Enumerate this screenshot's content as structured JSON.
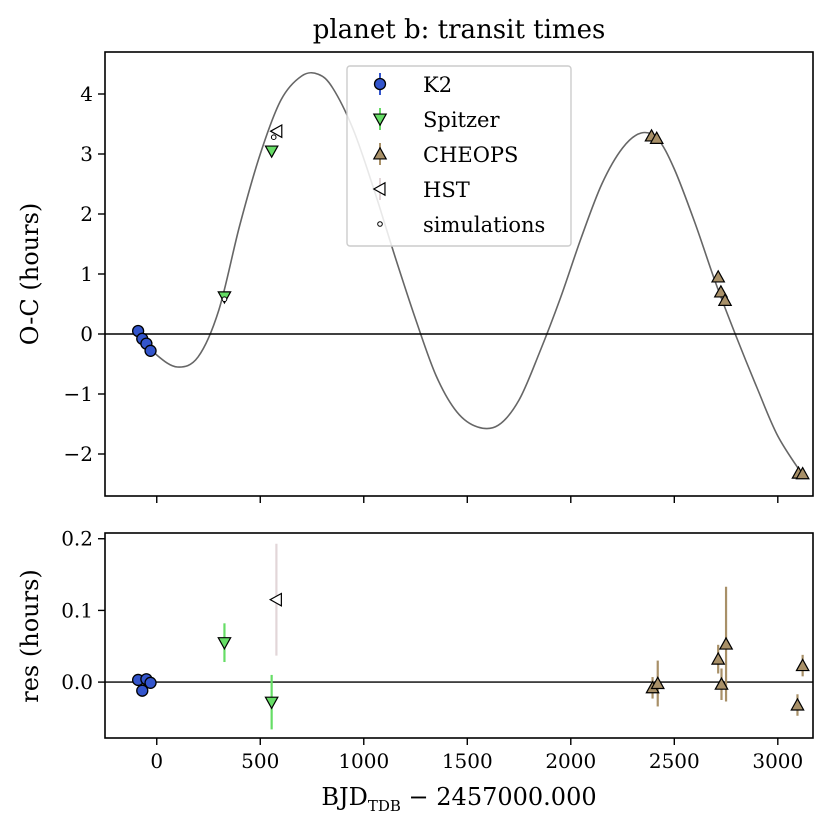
{
  "chart_data": [
    {
      "type": "scatter",
      "title": "planet b: transit times",
      "xlabel": "",
      "ylabel": "O-C (hours)",
      "xlim": [
        -250,
        3170
      ],
      "ylim": [
        -2.7,
        4.7
      ],
      "x_ticks": [
        0,
        500,
        1000,
        1500,
        2000,
        2500,
        3000
      ],
      "y_ticks": [
        -2,
        -1,
        0,
        1,
        2,
        3,
        4
      ],
      "y_tick_labels": [
        "−2",
        "−1",
        "0",
        "1",
        "2",
        "3",
        "4"
      ],
      "zero_line": 0,
      "legend_position": "upper center",
      "series": [
        {
          "name": "K2",
          "marker": "circle",
          "color": "#3355cc",
          "x": [
            -90,
            -70,
            -50,
            -30
          ],
          "y": [
            0.05,
            -0.08,
            -0.16,
            -0.28
          ]
        },
        {
          "name": "Spitzer",
          "marker": "triangle_down",
          "color": "#66dd66",
          "x": [
            327,
            555
          ],
          "y": [
            0.62,
            3.05
          ]
        },
        {
          "name": "CHEOPS",
          "marker": "triangle_up",
          "color": "#a89068",
          "x": [
            2390,
            2415,
            2712,
            2725,
            2745,
            3100,
            3120
          ],
          "y": [
            3.3,
            3.26,
            0.95,
            0.7,
            0.56,
            -2.32,
            -2.33
          ]
        },
        {
          "name": "HST",
          "marker": "triangle_left",
          "color": "#ffffff",
          "x": [
            580
          ],
          "y": [
            3.38
          ]
        },
        {
          "name": "simulations",
          "marker": "small_circle",
          "color": "#ffffff",
          "x": [
            327,
            565
          ],
          "y": [
            0.58,
            3.28
          ]
        }
      ],
      "model_curve": {
        "color": "#666666",
        "x": [
          -90,
          0,
          100,
          200,
          300,
          400,
          500,
          600,
          700,
          780,
          850,
          950,
          1050,
          1150,
          1250,
          1350,
          1450,
          1550,
          1650,
          1750,
          1850,
          1950,
          2050,
          2150,
          2250,
          2340,
          2420,
          2500,
          2600,
          2700,
          2800,
          2900,
          3000,
          3120
        ],
        "y": [
          0.0,
          -0.35,
          -0.55,
          -0.38,
          0.4,
          1.8,
          3.0,
          3.9,
          4.3,
          4.33,
          4.1,
          3.4,
          2.4,
          1.3,
          0.25,
          -0.7,
          -1.3,
          -1.55,
          -1.52,
          -1.1,
          -0.3,
          0.6,
          1.6,
          2.5,
          3.1,
          3.35,
          3.25,
          2.75,
          1.85,
          0.85,
          -0.05,
          -0.9,
          -1.7,
          -2.35
        ]
      }
    },
    {
      "type": "scatter",
      "title": "",
      "xlabel": "BJD_TDB − 2457000.000",
      "ylabel": "res (hours)",
      "xlim": [
        -250,
        3170
      ],
      "ylim": [
        -0.078,
        0.208
      ],
      "x_ticks": [
        0,
        500,
        1000,
        1500,
        2000,
        2500,
        3000
      ],
      "y_ticks": [
        0.0,
        0.1,
        0.2
      ],
      "y_tick_labels": [
        "0.0",
        "0.1",
        "0.2"
      ],
      "zero_line": 0,
      "series": [
        {
          "name": "K2",
          "marker": "circle",
          "color": "#3355cc",
          "x": [
            -90,
            -70,
            -50,
            -30
          ],
          "y": [
            0.003,
            -0.012,
            0.004,
            -0.001
          ],
          "err": [
            0.004,
            0.005,
            0.004,
            0.004
          ]
        },
        {
          "name": "Spitzer",
          "marker": "triangle_down",
          "color": "#66dd66",
          "x": [
            327,
            555
          ],
          "y": [
            0.055,
            -0.028
          ],
          "err": [
            0.027,
            0.038
          ]
        },
        {
          "name": "CHEOPS",
          "marker": "triangle_up",
          "color": "#a89068",
          "x": [
            2395,
            2420,
            2712,
            2728,
            2750,
            3095,
            3120
          ],
          "y": [
            -0.008,
            -0.002,
            0.032,
            -0.003,
            0.053,
            -0.032,
            0.023
          ],
          "err": [
            0.015,
            0.032,
            0.02,
            0.022,
            0.08,
            0.015,
            0.015
          ]
        },
        {
          "name": "HST",
          "marker": "triangle_left",
          "color": "#ffffff",
          "x": [
            578
          ],
          "y": [
            0.115
          ],
          "err": [
            0.078
          ],
          "err_color": "#e2d6d8"
        }
      ]
    }
  ]
}
